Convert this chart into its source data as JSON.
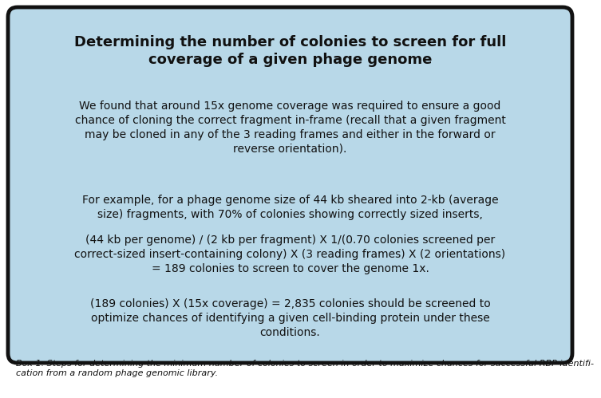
{
  "title": "Determining the number of colonies to screen for full\ncoverage of a given phage genome",
  "para1": "We found that around 15x genome coverage was required to ensure a good\nchance of cloning the correct fragment in-frame (recall that a given fragment\nmay be cloned in any of the 3 reading frames and either in the forward or\nreverse orientation).",
  "para2": "For example, for a phage genome size of 44 kb sheared into 2-kb (average\nsize) fragments, with 70% of colonies showing correctly sized inserts,",
  "para3": "(44 kb per genome) / (2 kb per fragment) X 1/(0.70 colonies screened per\ncorrect-sized insert-containing colony) X (3 reading frames) X (2 orientations)\n= 189 colonies to screen to cover the genome 1x.",
  "para4": "(189 colonies) X (15x coverage) = 2,835 colonies should be screened to\noptimize chances of identifying a given cell-binding protein under these\nconditions.",
  "caption": "Box 1. Steps for determining the minimum number of colonies to screen in order to maximize chances for successful RBP identifi-\ncation from a random phage genomic library.",
  "bg_color": "#b8d8e8",
  "box_edge_color": "#111111",
  "text_color": "#111111",
  "caption_color": "#111111",
  "fig_bg_color": "#ffffff",
  "title_fontsize": 13,
  "body_fontsize": 10,
  "caption_fontsize": 8
}
